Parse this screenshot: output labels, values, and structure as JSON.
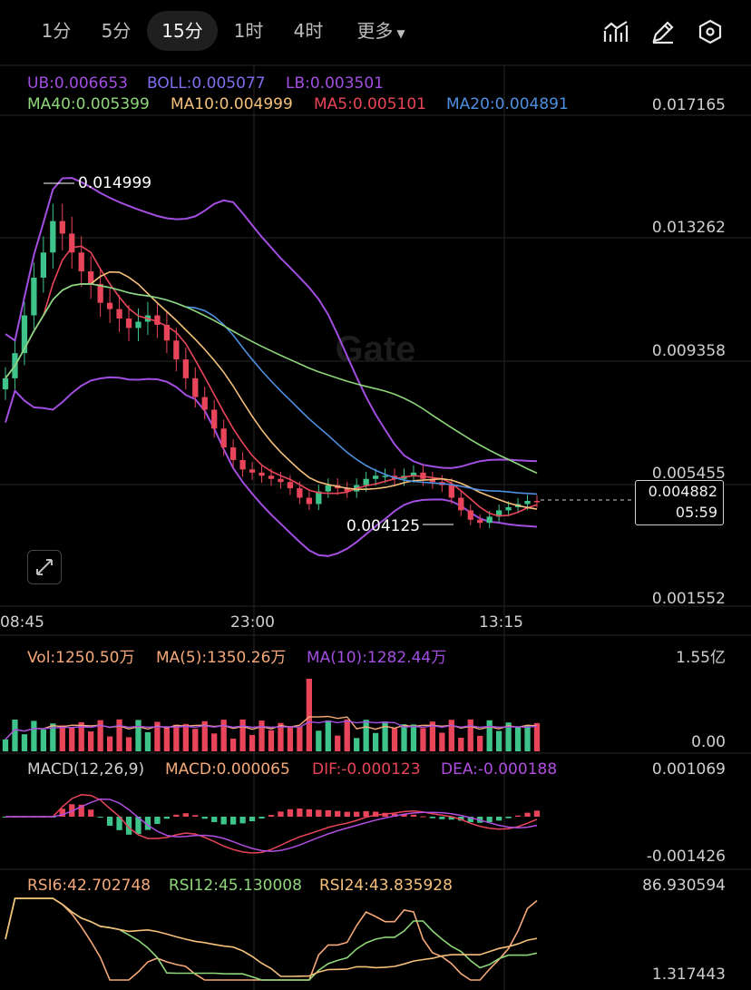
{
  "tabs": [
    {
      "label": "1分",
      "active": false
    },
    {
      "label": "5分",
      "active": false
    },
    {
      "label": "15分",
      "active": true
    },
    {
      "label": "1时",
      "active": false
    },
    {
      "label": "4时",
      "active": false
    }
  ],
  "more_label": "更多",
  "toolbar_icons": [
    "indicator-chart-icon",
    "pencil-icon",
    "hexagon-settings-icon"
  ],
  "boll": {
    "ub": "UB:0.006653",
    "boll": "BOLL:0.005077",
    "lb": "LB:0.003501"
  },
  "ma": {
    "ma40": "MA40:0.005399",
    "ma10": "MA10:0.004999",
    "ma5": "MA5:0.005101",
    "ma20": "MA20:0.004891"
  },
  "price_axis": [
    "0.017165",
    "0.013262",
    "0.009358",
    "0.005455",
    "0.001552"
  ],
  "annotations": {
    "high": "0.014999",
    "low": "0.004125"
  },
  "current": {
    "price": "0.004882",
    "countdown": "05:59"
  },
  "time_axis": [
    "08:45",
    "23:00",
    "13:15"
  ],
  "watermark": "Gate",
  "volume": {
    "vol": "Vol:1250.50万",
    "ma5": "MA(5):1350.26万",
    "ma10": "MA(10):1282.44万",
    "axis_top": "1.55亿",
    "axis_bottom": "0.00"
  },
  "macd": {
    "params": "MACD(12,26,9)",
    "macd": "MACD:0.000065",
    "dif": "DIF:-0.000123",
    "dea": "DEA:-0.000188",
    "axis_top": "0.001069",
    "axis_bottom": "-0.001426"
  },
  "rsi": {
    "rsi6": "RSI6:42.702748",
    "rsi12": "RSI12:45.130008",
    "rsi24": "RSI24:43.835928",
    "axis_top": "86.930594",
    "axis_bottom": "1.317443"
  },
  "colors": {
    "up": "#3ec48a",
    "down": "#e9455a",
    "ub": "#a24ee0",
    "lb": "#a24ee0",
    "ma5": "#e9455a",
    "ma10": "#f5c07a",
    "ma20": "#4e8fe0",
    "ma40": "#8ed67a"
  },
  "chart_data": {
    "type": "candlestick",
    "interval": "15分",
    "price_range": [
      0.001552,
      0.017165
    ],
    "candles_close_approx": [
      0.0088,
      0.0096,
      0.0108,
      0.012,
      0.0128,
      0.0138,
      0.0134,
      0.0128,
      0.0122,
      0.0118,
      0.0112,
      0.011,
      0.0107,
      0.0104,
      0.0106,
      0.0108,
      0.0105,
      0.01,
      0.0094,
      0.0088,
      0.0082,
      0.0078,
      0.0072,
      0.0066,
      0.0062,
      0.0059,
      0.0058,
      0.0057,
      0.0056,
      0.0055,
      0.0053,
      0.005,
      0.0048,
      0.0052,
      0.0054,
      0.0053,
      0.0052,
      0.0054,
      0.0056,
      0.0057,
      0.0057,
      0.0056,
      0.0057,
      0.0058,
      0.0056,
      0.0055,
      0.0054,
      0.005,
      0.0046,
      0.0043,
      0.0042,
      0.0044,
      0.0046,
      0.0047,
      0.0048,
      0.0049,
      0.00488
    ],
    "high": 0.014999,
    "low": 0.004125,
    "last": 0.004882,
    "bollinger": {
      "ub": 0.006653,
      "mid": 0.005077,
      "lb": 0.003501
    },
    "ma": {
      "ma5": 0.005101,
      "ma10": 0.004999,
      "ma20": 0.004891,
      "ma40": 0.005399
    },
    "volume_max": "1.55亿",
    "macd": {
      "macd": 6.5e-05,
      "dif": -0.000123,
      "dea": -0.000188
    },
    "rsi": {
      "rsi6": 42.702748,
      "rsi12": 45.130008,
      "rsi24": 43.835928
    }
  }
}
